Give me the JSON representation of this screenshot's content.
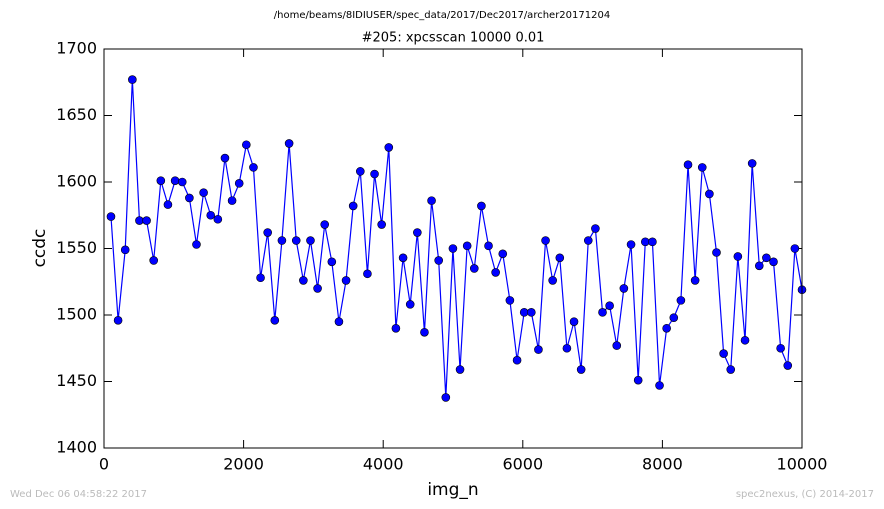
{
  "chart_data": {
    "type": "line",
    "suptitle": "/home/beams/8IDIUSER/spec_data/2017/Dec2017/archer20171204",
    "title": "#205: xpcsscan 10000 0.01",
    "xlabel": "img_n",
    "ylabel": "ccdc",
    "x": [
      100,
      202,
      304,
      406,
      508,
      610,
      712,
      814,
      916,
      1019,
      1121,
      1223,
      1325,
      1427,
      1529,
      1631,
      1733,
      1835,
      1937,
      2039,
      2141,
      2243,
      2345,
      2447,
      2549,
      2652,
      2754,
      2856,
      2958,
      3060,
      3162,
      3264,
      3366,
      3468,
      3570,
      3672,
      3774,
      3876,
      3978,
      4080,
      4182,
      4285,
      4387,
      4489,
      4591,
      4693,
      4795,
      4897,
      4999,
      5101,
      5203,
      5305,
      5407,
      5509,
      5611,
      5713,
      5815,
      5918,
      6020,
      6122,
      6224,
      6326,
      6428,
      6530,
      6632,
      6734,
      6836,
      6938,
      7040,
      7142,
      7244,
      7346,
      7448,
      7551,
      7653,
      7755,
      7857,
      7959,
      8061,
      8163,
      8265,
      8367,
      8469,
      8571,
      8673,
      8775,
      8877,
      8979,
      9081,
      9184,
      9286,
      9388,
      9490,
      9592,
      9694,
      9796,
      9898,
      10000
    ],
    "series": [
      {
        "name": "ccdc",
        "color": "#0000ff",
        "marker_color": "#0000ff",
        "values": [
          1574,
          1496,
          1549,
          1677,
          1571,
          1571,
          1541,
          1601,
          1583,
          1601,
          1600,
          1588,
          1553,
          1592,
          1575,
          1572,
          1618,
          1586,
          1599,
          1628,
          1611,
          1528,
          1562,
          1496,
          1556,
          1629,
          1556,
          1526,
          1556,
          1520,
          1568,
          1540,
          1495,
          1526,
          1582,
          1608,
          1531,
          1606,
          1568,
          1626,
          1490,
          1543,
          1508,
          1562,
          1487,
          1586,
          1541,
          1438,
          1550,
          1459,
          1552,
          1535,
          1582,
          1552,
          1532,
          1546,
          1511,
          1466,
          1502,
          1502,
          1474,
          1556,
          1526,
          1543,
          1475,
          1495,
          1459,
          1556,
          1565,
          1502,
          1507,
          1477,
          1520,
          1553,
          1451,
          1555,
          1555,
          1447,
          1490,
          1498,
          1511,
          1613,
          1526,
          1611,
          1591,
          1547,
          1471,
          1459,
          1544,
          1481,
          1614,
          1537,
          1543,
          1540,
          1475,
          1462,
          1550,
          1519
        ]
      }
    ],
    "xlim": [
      0,
      10000
    ],
    "xticks": [
      0,
      2000,
      4000,
      6000,
      8000,
      10000
    ],
    "ylim": [
      1400,
      1700
    ],
    "yticks": [
      1400,
      1450,
      1500,
      1550,
      1600,
      1650,
      1700
    ],
    "grid": false
  },
  "footer_left": "Wed Dec 06 04:58:22 2017",
  "footer_right": "spec2nexus, (C) 2014-2017"
}
